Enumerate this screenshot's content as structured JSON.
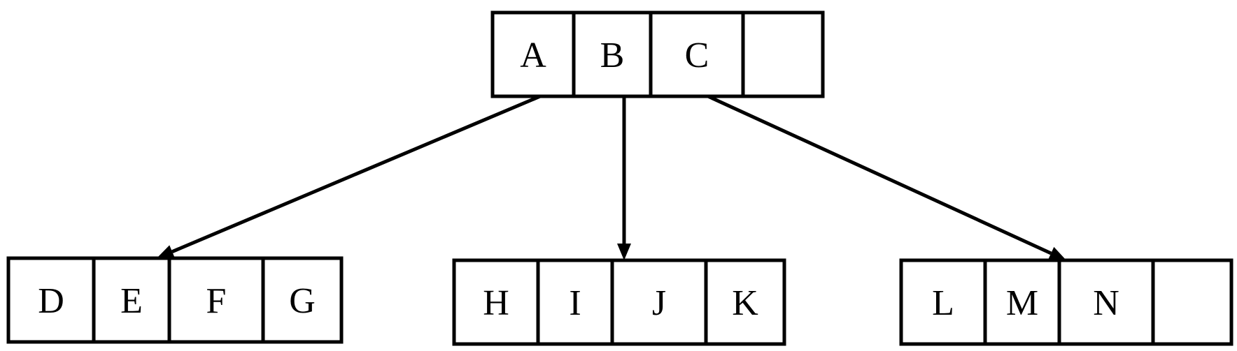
{
  "nodes": [
    {
      "id": "root",
      "cells": [
        "A",
        "B",
        "C",
        ""
      ]
    },
    {
      "id": "left",
      "cells": [
        "D",
        "E",
        "F",
        "G"
      ]
    },
    {
      "id": "middle",
      "cells": [
        "H",
        "I",
        "J",
        "K"
      ]
    },
    {
      "id": "right",
      "cells": [
        "L",
        "M",
        "N",
        ""
      ]
    }
  ],
  "edges": [
    {
      "from": "root",
      "to": "left"
    },
    {
      "from": "root",
      "to": "middle"
    },
    {
      "from": "root",
      "to": "right"
    }
  ]
}
